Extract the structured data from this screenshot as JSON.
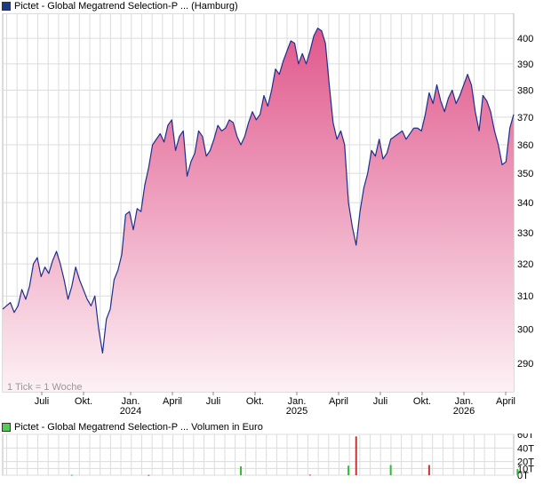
{
  "legend": {
    "price_label": "Pictet - Global Megatrend Selection-P ... (Hamburg)",
    "volume_label": "Pictet - Global Megatrend Selection-P ... Volumen in Euro",
    "price_swatch_color": "#1e3a8a",
    "volume_swatch_color": "#55cc55"
  },
  "tick_note": "1 Tick = 1 Woche",
  "colors": {
    "line": "#1f2f8c",
    "area_top": "#e0588c",
    "area_bottom": "#fdf1f5",
    "grid": "#dcdcdc",
    "volume_up": "#33bb33",
    "volume_down": "#cc3333"
  },
  "chart_data": [
    {
      "type": "area",
      "series": [],
      "x_tick_labels": [
        {
          "label": "Juli",
          "year": ""
        },
        {
          "label": "Okt.",
          "year": ""
        },
        {
          "label": "Jan.",
          "year": "2024"
        },
        {
          "label": "April",
          "year": ""
        },
        {
          "label": "Juli",
          "year": ""
        },
        {
          "label": "Okt.",
          "year": ""
        },
        {
          "label": "Jan.",
          "year": "2025"
        },
        {
          "label": "April",
          "year": ""
        },
        {
          "label": "Juli",
          "year": ""
        },
        {
          "label": "Okt.",
          "year": ""
        },
        {
          "label": "Jan.",
          "year": "2026"
        },
        {
          "label": "April",
          "year": ""
        }
      ],
      "y_ticks": [
        290,
        300,
        310,
        320,
        330,
        340,
        350,
        360,
        370,
        380,
        390,
        400
      ],
      "y_axis": "right",
      "y_scale": "log",
      "ylim": [
        282,
        410
      ],
      "grid": true,
      "values": [
        306,
        307,
        308,
        305,
        307,
        312,
        309,
        313,
        320,
        322,
        316,
        319,
        317,
        321,
        324,
        320,
        315,
        309,
        313,
        319,
        315,
        312,
        309,
        307,
        310,
        300,
        293,
        303,
        306,
        315,
        318,
        323,
        336,
        337,
        331,
        338,
        337,
        346,
        352,
        360,
        362,
        364,
        361,
        367,
        369,
        358,
        363,
        365,
        349,
        354,
        357,
        365,
        363,
        356,
        358,
        362,
        367,
        365,
        366,
        369,
        368,
        363,
        360,
        363,
        368,
        372,
        369,
        371,
        378,
        374,
        380,
        388,
        386,
        391,
        395,
        399,
        398,
        390,
        394,
        390,
        395,
        401,
        404,
        403,
        398,
        382,
        368,
        362,
        365,
        360,
        340,
        332,
        326,
        337,
        345,
        350,
        358,
        356,
        362,
        355,
        357,
        362,
        363,
        364,
        365,
        362,
        364,
        366,
        366,
        365,
        371,
        379,
        375,
        382,
        376,
        372,
        377,
        380,
        375,
        378,
        382,
        386,
        382,
        372,
        365,
        378,
        376,
        372,
        365,
        360,
        353,
        354,
        366,
        371
      ]
    },
    {
      "type": "bar",
      "series": [],
      "y_ticks": [
        "0T",
        "10T",
        "20T",
        "40T",
        "60T"
      ],
      "y_tick_values": [
        0,
        10,
        20,
        40,
        60
      ],
      "ylim": [
        0,
        60
      ],
      "bars": [
        {
          "index": 18,
          "value": 0.6,
          "dir": "up"
        },
        {
          "index": 38,
          "value": 0.5,
          "dir": "down"
        },
        {
          "index": 62,
          "value": 13,
          "dir": "up"
        },
        {
          "index": 80,
          "value": 0.8,
          "dir": "down"
        },
        {
          "index": 90,
          "value": 14,
          "dir": "up"
        },
        {
          "index": 92,
          "value": 57,
          "dir": "down"
        },
        {
          "index": 101,
          "value": 15,
          "dir": "up"
        },
        {
          "index": 111,
          "value": 15,
          "dir": "down"
        },
        {
          "index": 134,
          "value": 9,
          "dir": "up"
        }
      ]
    }
  ]
}
